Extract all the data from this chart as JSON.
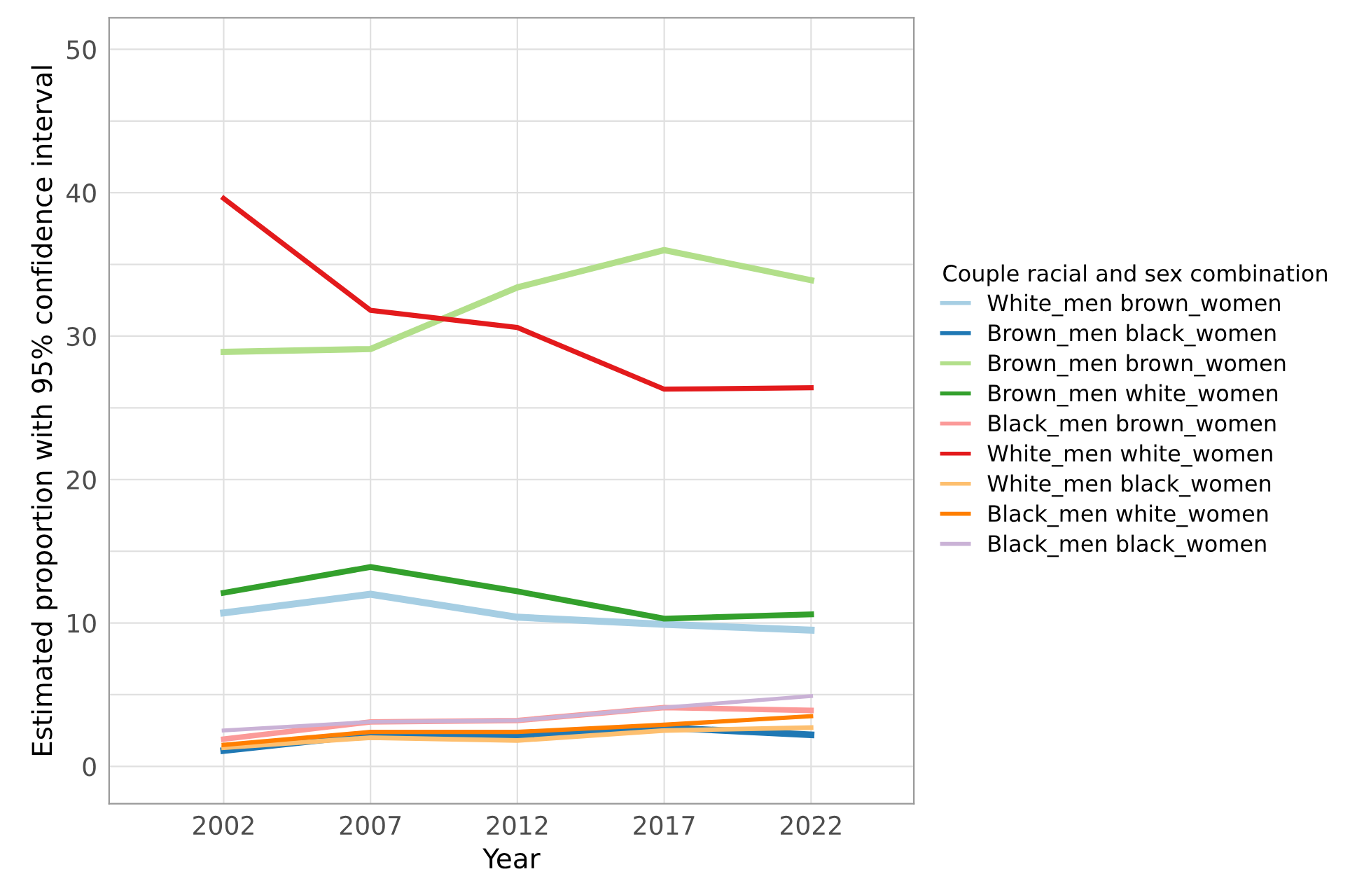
{
  "chart_data": {
    "type": "line",
    "xlabel": "Year",
    "ylabel": "Estimated proportion with 95% confidence interval",
    "legend_title": "Couple racial and sex combination",
    "x": [
      2002,
      2007,
      2012,
      2017,
      2022
    ],
    "xlim": [
      1998.1,
      2025.5
    ],
    "xticks": [
      2002,
      2007,
      2012,
      2017,
      2022
    ],
    "ylim": [
      -2.6,
      52.2
    ],
    "yticks": [
      0,
      {
        "value": 5,
        "label": null
      },
      10,
      {
        "value": 15,
        "label": null
      },
      20,
      {
        "value": 25,
        "label": null
      },
      30,
      {
        "value": 35,
        "label": null
      },
      40,
      {
        "value": 45,
        "label": null
      },
      50
    ],
    "grid": true,
    "legend": "right",
    "line_style": "solid",
    "series": [
      {
        "name": "White_men brown_women",
        "color": "#a6cee3",
        "values": [
          10.7,
          12.0,
          10.4,
          9.9,
          9.5
        ]
      },
      {
        "name": "Brown_men black_women",
        "color": "#1f78b4",
        "values": [
          1.1,
          2.2,
          2.1,
          2.7,
          2.2
        ]
      },
      {
        "name": "Brown_men brown_women",
        "color": "#b2df8a",
        "values": [
          28.9,
          29.1,
          33.4,
          36.0,
          33.9
        ]
      },
      {
        "name": "Brown_men white_women",
        "color": "#33a02c",
        "values": [
          12.1,
          13.9,
          12.2,
          10.3,
          10.6
        ]
      },
      {
        "name": "Black_men brown_women",
        "color": "#fb9a99",
        "values": [
          1.9,
          3.1,
          3.2,
          4.1,
          3.9
        ]
      },
      {
        "name": "White_men white_women",
        "color": "#e31a1c",
        "values": [
          39.6,
          31.8,
          30.6,
          26.3,
          26.4
        ]
      },
      {
        "name": "White_men black_women",
        "color": "#fdbf6f",
        "values": [
          1.3,
          2.0,
          1.8,
          2.5,
          2.7
        ]
      },
      {
        "name": "Black_men white_women",
        "color": "#ff7f00",
        "values": [
          1.5,
          2.4,
          2.4,
          2.9,
          3.5
        ]
      },
      {
        "name": "Black_men black_women",
        "color": "#cab2d6",
        "values": [
          2.5,
          3.1,
          3.2,
          4.1,
          4.9
        ]
      }
    ]
  }
}
